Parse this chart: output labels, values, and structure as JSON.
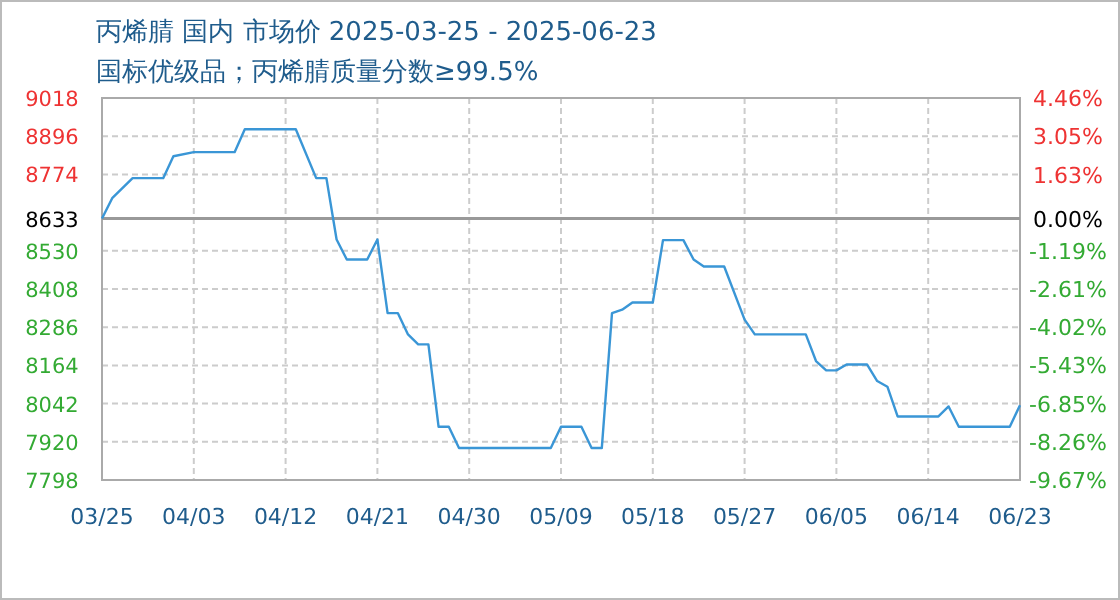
{
  "chart_data": {
    "type": "line",
    "title": "丙烯腈 国内 市场价 2025-03-25 - 2025-06-23",
    "subtitle": "国标优级品；丙烯腈质量分数≥99.5%",
    "x": [
      "2025-03-25",
      "2025-03-26",
      "2025-03-28",
      "2025-03-31",
      "2025-04-01",
      "2025-04-03",
      "2025-04-07",
      "2025-04-08",
      "2025-04-13",
      "2025-04-15",
      "2025-04-16",
      "2025-04-17",
      "2025-04-18",
      "2025-04-20",
      "2025-04-21",
      "2025-04-22",
      "2025-04-23",
      "2025-04-24",
      "2025-04-25",
      "2025-04-26",
      "2025-04-27",
      "2025-04-28",
      "2025-04-29",
      "2025-05-08",
      "2025-05-09",
      "2025-05-11",
      "2025-05-12",
      "2025-05-13",
      "2025-05-14",
      "2025-05-15",
      "2025-05-16",
      "2025-05-18",
      "2025-05-19",
      "2025-05-21",
      "2025-05-22",
      "2025-05-23",
      "2025-05-25",
      "2025-05-27",
      "2025-05-28",
      "2025-06-02",
      "2025-06-03",
      "2025-06-04",
      "2025-06-05",
      "2025-06-06",
      "2025-06-08",
      "2025-06-09",
      "2025-06-10",
      "2025-06-11",
      "2025-06-15",
      "2025-06-16",
      "2025-06-17",
      "2025-06-22",
      "2025-06-23"
    ],
    "series": [
      {
        "color": "#3a96d6",
        "values": [
          8633,
          8698,
          8762,
          8762,
          8832,
          8845,
          8845,
          8918,
          8918,
          8762,
          8762,
          8566,
          8502,
          8502,
          8566,
          8331,
          8331,
          8263,
          8231,
          8231,
          7968,
          7968,
          7900,
          7900,
          7968,
          7968,
          7900,
          7900,
          8331,
          8342,
          8365,
          8365,
          8564,
          8564,
          8502,
          8480,
          8480,
          8310,
          8263,
          8263,
          8178,
          8148,
          8148,
          8167,
          8167,
          8114,
          8096,
          8001,
          8001,
          8033,
          7968,
          7968,
          8037
        ]
      }
    ],
    "xlim": [
      "2025-03-25",
      "2025-06-23"
    ],
    "xticks": [
      {
        "value": "2025-03-25",
        "label": "03/25"
      },
      {
        "value": "2025-04-03",
        "label": "04/03"
      },
      {
        "value": "2025-04-12",
        "label": "04/12"
      },
      {
        "value": "2025-04-21",
        "label": "04/21"
      },
      {
        "value": "2025-04-30",
        "label": "04/30"
      },
      {
        "value": "2025-05-09",
        "label": "05/09"
      },
      {
        "value": "2025-05-18",
        "label": "05/18"
      },
      {
        "value": "2025-05-27",
        "label": "05/27"
      },
      {
        "value": "2025-06-05",
        "label": "06/05"
      },
      {
        "value": "2025-06-14",
        "label": "06/14"
      },
      {
        "value": "2025-06-23",
        "label": "06/23"
      }
    ],
    "ylim": [
      7798,
      9018
    ],
    "yticks": [
      7798,
      7920,
      8042,
      8164,
      8286,
      8408,
      8530,
      8633,
      8774,
      8896,
      9018
    ],
    "y2lim": [
      -9.67,
      4.46
    ],
    "y2ticks": [
      {
        "value": -9.67,
        "label": "-9.67%"
      },
      {
        "value": -8.26,
        "label": "-8.26%"
      },
      {
        "value": -6.85,
        "label": "-6.85%"
      },
      {
        "value": -5.43,
        "label": "-5.43%"
      },
      {
        "value": -4.02,
        "label": "-4.02%"
      },
      {
        "value": -2.61,
        "label": "-2.61%"
      },
      {
        "value": -1.19,
        "label": "-1.19%"
      },
      {
        "value": 0,
        "label": "0.00%"
      },
      {
        "value": 1.63,
        "label": "1.63%"
      },
      {
        "value": 3.05,
        "label": "3.05%"
      },
      {
        "value": 4.46,
        "label": "4.46%"
      }
    ],
    "ref_lines": [
      {
        "axis": "y",
        "value": 8633,
        "color": "#999999"
      }
    ],
    "grid": true,
    "marker": "none",
    "line_style": "solid"
  }
}
